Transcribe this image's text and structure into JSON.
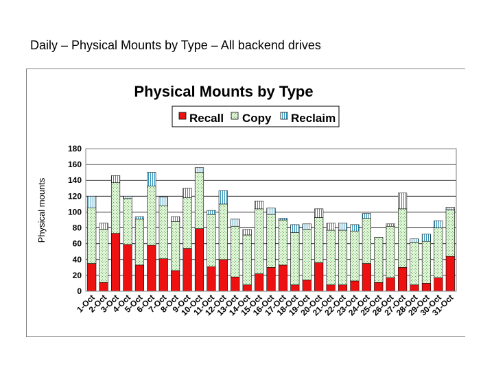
{
  "page": {
    "title": "Daily – Physical Mounts by Type – All backend drives"
  },
  "colors": {
    "recall": "#ee1111",
    "copy": "#d4f0c8",
    "reclaim": "#bfe2f0"
  },
  "chart_data": {
    "type": "bar",
    "stacked": true,
    "title": "Physical Mounts by Type",
    "xlabel": "",
    "ylabel": "Physical mounts",
    "ylim": [
      0,
      180
    ],
    "yticks": [
      0,
      20,
      40,
      60,
      80,
      100,
      120,
      140,
      160,
      180
    ],
    "grid": true,
    "legend": "top-center",
    "categories": [
      "1-Oct",
      "2-Oct",
      "3-Oct",
      "4-Oct",
      "5-Oct",
      "6-Oct",
      "7-Oct",
      "8-Oct",
      "9-Oct",
      "10-Oct",
      "11-Oct",
      "12-Oct",
      "13-Oct",
      "14-Oct",
      "15-Oct",
      "16-Oct",
      "17-Oct",
      "18-Oct",
      "19-Oct",
      "20-Oct",
      "21-Oct",
      "22-Oct",
      "23-Oct",
      "24-Oct",
      "25-Oct",
      "26-Oct",
      "27-Oct",
      "28-Oct",
      "29-Oct",
      "30-Oct",
      "31-Oct"
    ],
    "series": [
      {
        "name": "Recall",
        "values": [
          35,
          11,
          73,
          59,
          33,
          58,
          41,
          26,
          54,
          79,
          31,
          40,
          18,
          8,
          22,
          30,
          33,
          8,
          14,
          36,
          8,
          8,
          13,
          35,
          11,
          17,
          30,
          8,
          10,
          17,
          44
        ]
      },
      {
        "name": "Copy",
        "values": [
          70,
          67,
          64,
          58,
          58,
          75,
          67,
          62,
          64,
          71,
          66,
          70,
          64,
          63,
          82,
          67,
          57,
          66,
          64,
          57,
          69,
          69,
          63,
          57,
          57,
          65,
          74,
          54,
          53,
          63,
          59
        ]
      },
      {
        "name": "Reclaim",
        "values": [
          15,
          8,
          9,
          3,
          3,
          17,
          11,
          6,
          12,
          6,
          5,
          17,
          9,
          7,
          10,
          8,
          2,
          10,
          7,
          11,
          9,
          9,
          8,
          6,
          0,
          3,
          20,
          4,
          9,
          9,
          3
        ]
      }
    ]
  }
}
